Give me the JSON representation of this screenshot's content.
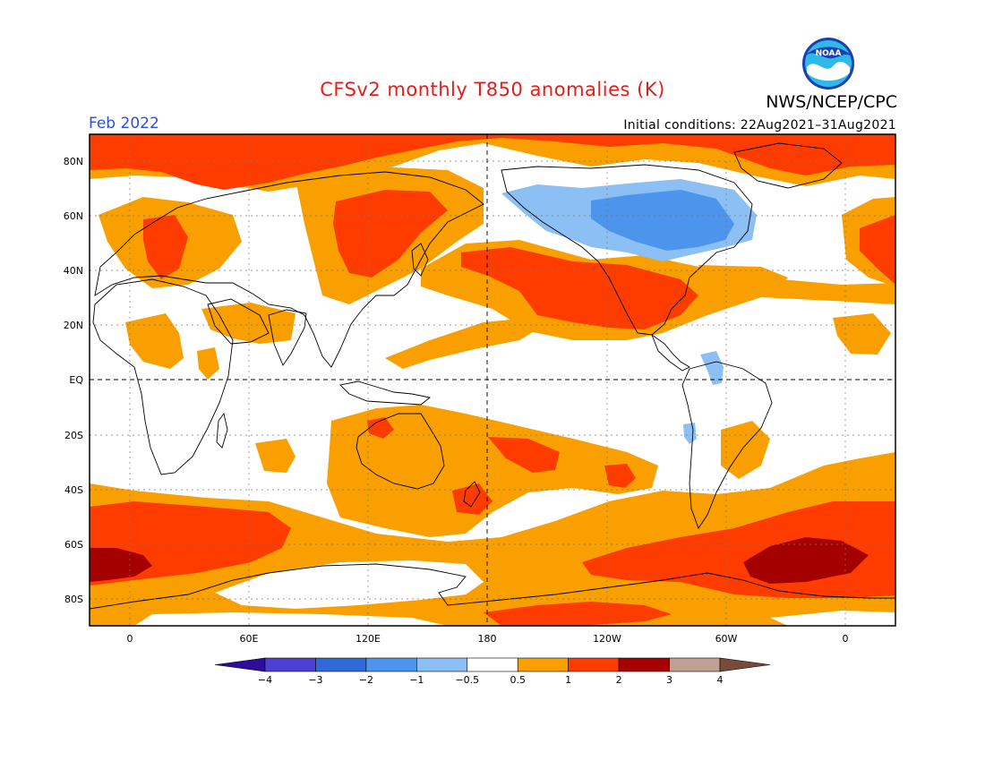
{
  "header": {
    "title": "CFSv2 monthly T850 anomalies (K)",
    "agency": "NWS/NCEP/CPC",
    "month": "Feb 2022",
    "initial_conditions": "Initial conditions: 22Aug2021–31Aug2021",
    "logo_text": "NOAA"
  },
  "axes": {
    "lat_labels": [
      "80N",
      "60N",
      "40N",
      "20N",
      "EQ",
      "20S",
      "40S",
      "60S",
      "80S"
    ],
    "lon_labels": [
      "0",
      "60E",
      "120E",
      "180",
      "120W",
      "60W",
      "0"
    ]
  },
  "colorbar": {
    "labels": [
      "−4",
      "−3",
      "−2",
      "−1",
      "−0.5",
      "0.5",
      "1",
      "2",
      "3",
      "4"
    ],
    "colors": [
      "#2c0d9c",
      "#4c3fd4",
      "#2f6ad8",
      "#4c94ec",
      "#8cc0f4",
      "#ffffff",
      "#f9a000",
      "#ff3c00",
      "#a50000",
      "#c0a090",
      "#7a4a3a"
    ]
  },
  "colors": {
    "light_warm": "#f9a000",
    "warm": "#ff3c00",
    "very_warm": "#a50000",
    "cool": "#8cc0f4",
    "cooler": "#4c94ec",
    "title": "#e0201c",
    "month": "#2a4fe0"
  }
}
